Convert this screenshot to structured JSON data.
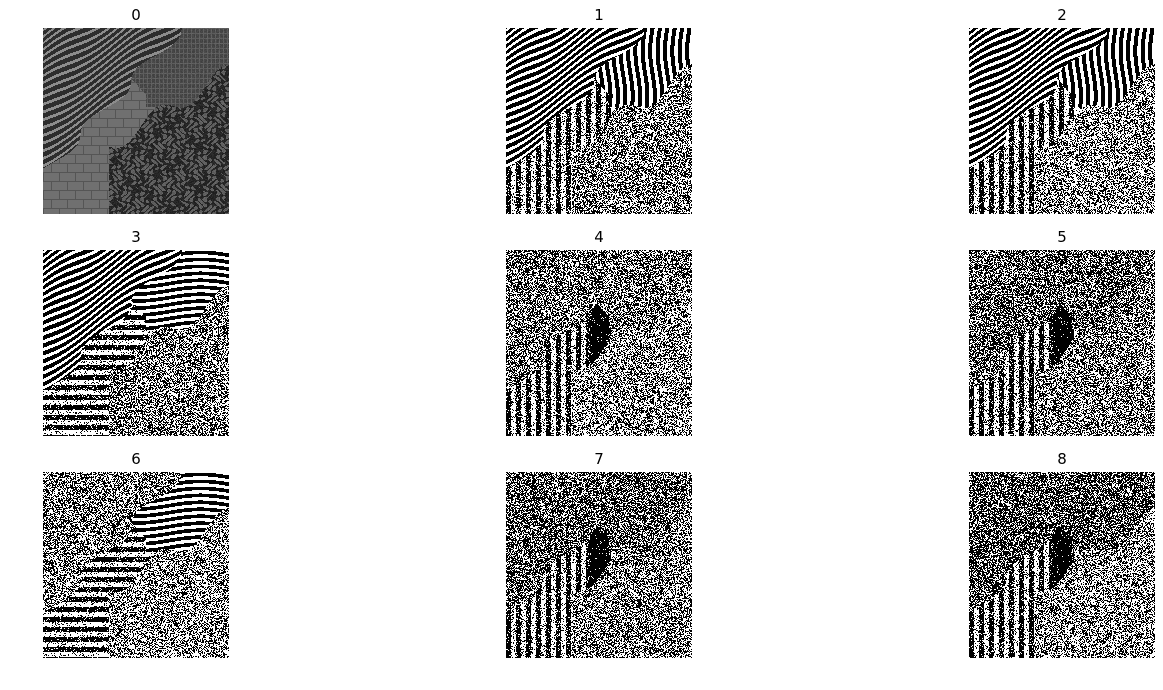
{
  "figure": {
    "panels": [
      {
        "id": 0,
        "title": "0",
        "kind": "texture-mosaic"
      },
      {
        "id": 1,
        "title": "1",
        "kind": "binary-filter-response"
      },
      {
        "id": 2,
        "title": "2",
        "kind": "binary-filter-response"
      },
      {
        "id": 3,
        "title": "3",
        "kind": "binary-filter-response"
      },
      {
        "id": 4,
        "title": "4",
        "kind": "binary-filter-response"
      },
      {
        "id": 5,
        "title": "5",
        "kind": "binary-filter-response"
      },
      {
        "id": 6,
        "title": "6",
        "kind": "binary-filter-response"
      },
      {
        "id": 7,
        "title": "7",
        "kind": "binary-filter-response"
      },
      {
        "id": 8,
        "title": "8",
        "kind": "binary-filter-response"
      }
    ],
    "colors": {
      "background": "#ffffff",
      "mosaic_gray": "#6e6e6e",
      "mosaic_dark": "#2a2a2a",
      "binary_black": "#000000",
      "binary_white": "#ffffff"
    }
  }
}
